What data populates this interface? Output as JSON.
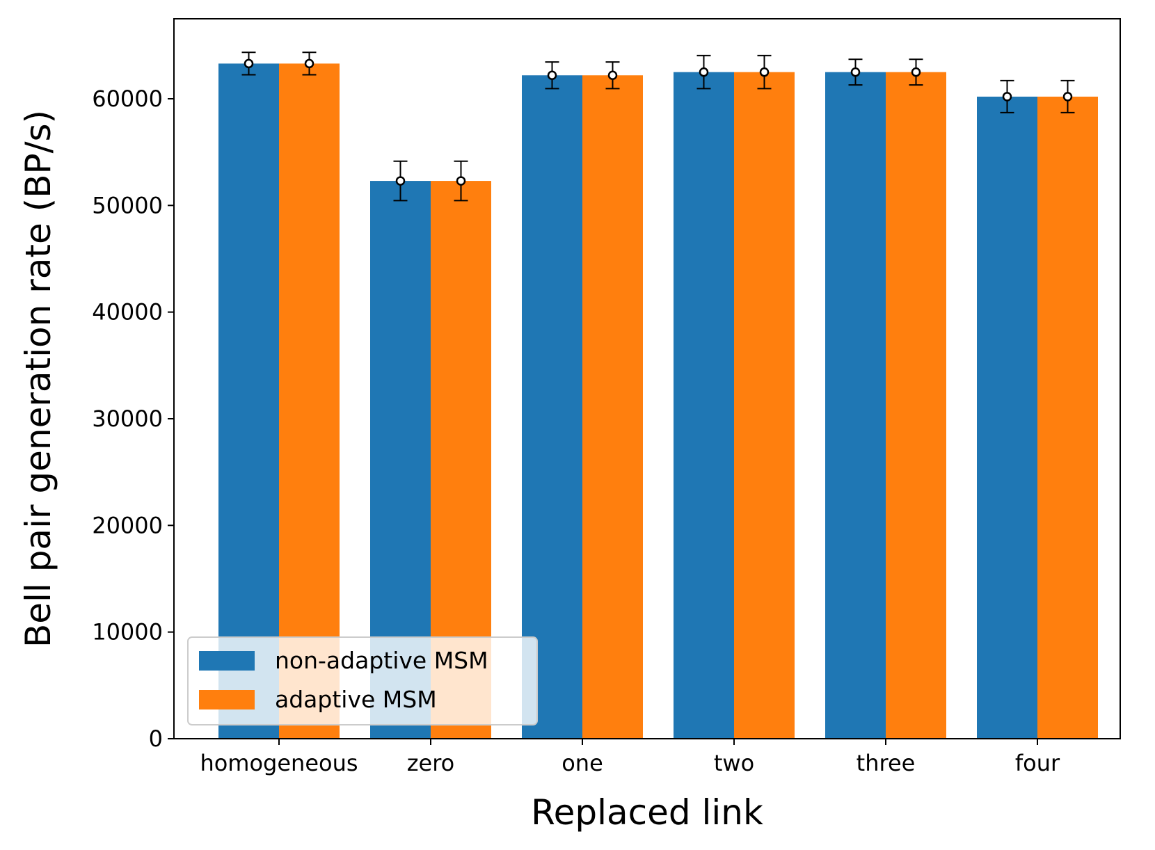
{
  "chart_data": {
    "type": "bar",
    "title": "",
    "xlabel": "Replaced link",
    "ylabel": "Bell pair generation rate (BP/s)",
    "categories": [
      "homogeneous",
      "zero",
      "one",
      "two",
      "three",
      "four"
    ],
    "ylim": [
      0,
      67500
    ],
    "yticks": [
      0,
      10000,
      20000,
      30000,
      40000,
      50000,
      60000
    ],
    "ytick_labels": [
      "0",
      "10000",
      "20000",
      "30000",
      "40000",
      "50000",
      "60000"
    ],
    "grid": false,
    "legend_position": "lower-left",
    "series": [
      {
        "name": "non-adaptive MSM",
        "color": "#1f77b4",
        "values": [
          63300,
          52300,
          62200,
          62500,
          62500,
          60200
        ],
        "errors": [
          1050,
          1850,
          1250,
          1550,
          1200,
          1500
        ]
      },
      {
        "name": "adaptive MSM",
        "color": "#ff7f0e",
        "values": [
          63300,
          52300,
          62200,
          62500,
          62500,
          60200
        ],
        "errors": [
          1050,
          1850,
          1250,
          1550,
          1200,
          1500
        ]
      }
    ]
  }
}
